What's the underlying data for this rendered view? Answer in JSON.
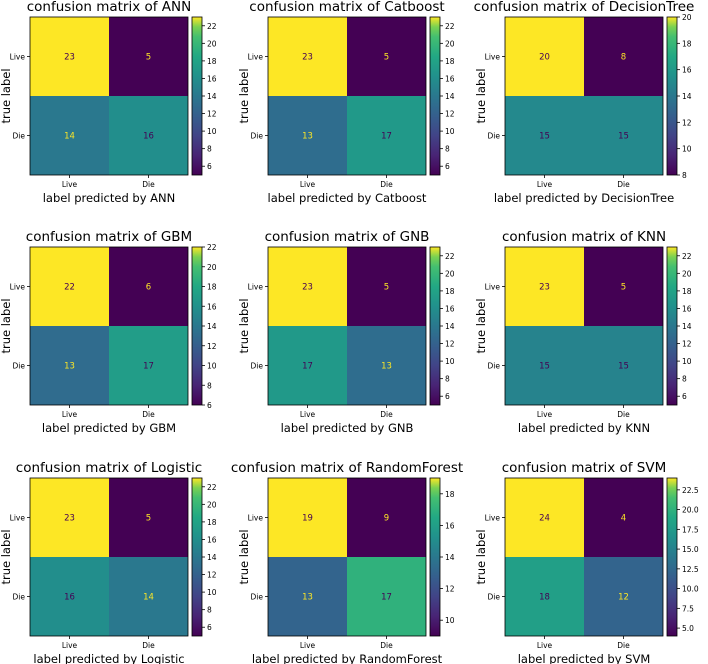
{
  "chart_data": [
    {
      "type": "heatmap",
      "title": "confusion matrix of ANN",
      "xlabel": "label predicted by  ANN",
      "ylabel": "true label",
      "x_categories": [
        "Live",
        "Die"
      ],
      "y_categories": [
        "Live",
        "Die"
      ],
      "values": [
        [
          23,
          5
        ],
        [
          14,
          16
        ]
      ],
      "colorbar": {
        "min": 5,
        "max": 23,
        "ticks": [
          "6",
          "8",
          "10",
          "12",
          "14",
          "16",
          "18",
          "20",
          "22"
        ]
      }
    },
    {
      "type": "heatmap",
      "title": "confusion matrix of Catboost",
      "xlabel": "label predicted by  Catboost",
      "ylabel": "true label",
      "x_categories": [
        "Live",
        "Die"
      ],
      "y_categories": [
        "Live",
        "Die"
      ],
      "values": [
        [
          23,
          5
        ],
        [
          13,
          17
        ]
      ],
      "colorbar": {
        "min": 5,
        "max": 23,
        "ticks": [
          "6",
          "8",
          "10",
          "12",
          "14",
          "16",
          "18",
          "20",
          "22"
        ]
      }
    },
    {
      "type": "heatmap",
      "title": "confusion matrix of DecisionTree",
      "xlabel": "label predicted by  DecisionTree",
      "ylabel": "true label",
      "x_categories": [
        "Live",
        "Die"
      ],
      "y_categories": [
        "Live",
        "Die"
      ],
      "values": [
        [
          20,
          8
        ],
        [
          15,
          15
        ]
      ],
      "colorbar": {
        "min": 8,
        "max": 20,
        "ticks": [
          "8",
          "10",
          "12",
          "14",
          "16",
          "18",
          "20"
        ]
      }
    },
    {
      "type": "heatmap",
      "title": "confusion matrix of GBM",
      "xlabel": "label predicted by  GBM",
      "ylabel": "true label",
      "x_categories": [
        "Live",
        "Die"
      ],
      "y_categories": [
        "Live",
        "Die"
      ],
      "values": [
        [
          22,
          6
        ],
        [
          13,
          17
        ]
      ],
      "colorbar": {
        "min": 6,
        "max": 22,
        "ticks": [
          "6",
          "8",
          "10",
          "12",
          "14",
          "16",
          "18",
          "20",
          "22"
        ]
      }
    },
    {
      "type": "heatmap",
      "title": "confusion matrix of GNB",
      "xlabel": "label predicted by  GNB",
      "ylabel": "true label",
      "x_categories": [
        "Live",
        "Die"
      ],
      "y_categories": [
        "Live",
        "Die"
      ],
      "values": [
        [
          23,
          5
        ],
        [
          17,
          13
        ]
      ],
      "colorbar": {
        "min": 5,
        "max": 23,
        "ticks": [
          "6",
          "8",
          "10",
          "12",
          "14",
          "16",
          "18",
          "20",
          "22"
        ]
      }
    },
    {
      "type": "heatmap",
      "title": "confusion matrix of KNN",
      "xlabel": "label predicted by  KNN",
      "ylabel": "true label",
      "x_categories": [
        "Live",
        "Die"
      ],
      "y_categories": [
        "Live",
        "Die"
      ],
      "values": [
        [
          23,
          5
        ],
        [
          15,
          15
        ]
      ],
      "colorbar": {
        "min": 5,
        "max": 23,
        "ticks": [
          "6",
          "8",
          "10",
          "12",
          "14",
          "16",
          "18",
          "20",
          "22"
        ]
      }
    },
    {
      "type": "heatmap",
      "title": "confusion matrix of Logistic",
      "xlabel": "label predicted by  Logistic",
      "ylabel": "true label",
      "x_categories": [
        "Live",
        "Die"
      ],
      "y_categories": [
        "Live",
        "Die"
      ],
      "values": [
        [
          23,
          5
        ],
        [
          16,
          14
        ]
      ],
      "colorbar": {
        "min": 5,
        "max": 23,
        "ticks": [
          "6",
          "8",
          "10",
          "12",
          "14",
          "16",
          "18",
          "20",
          "22"
        ]
      }
    },
    {
      "type": "heatmap",
      "title": "confusion matrix of RandomForest",
      "xlabel": "label predicted by  RandomForest",
      "ylabel": "true label",
      "x_categories": [
        "Live",
        "Die"
      ],
      "y_categories": [
        "Live",
        "Die"
      ],
      "values": [
        [
          19,
          9
        ],
        [
          13,
          17
        ]
      ],
      "colorbar": {
        "min": 9,
        "max": 19,
        "ticks": [
          "10",
          "12",
          "14",
          "16",
          "18"
        ]
      }
    },
    {
      "type": "heatmap",
      "title": "confusion matrix of SVM",
      "xlabel": "label predicted by  SVM",
      "ylabel": "true label",
      "x_categories": [
        "Live",
        "Die"
      ],
      "y_categories": [
        "Live",
        "Die"
      ],
      "values": [
        [
          24,
          4
        ],
        [
          18,
          12
        ]
      ],
      "colorbar": {
        "min": 4,
        "max": 24,
        "ticks": [
          "5.0",
          "7.5",
          "10.0",
          "12.5",
          "15.0",
          "17.5",
          "20.0",
          "22.5"
        ]
      }
    }
  ]
}
